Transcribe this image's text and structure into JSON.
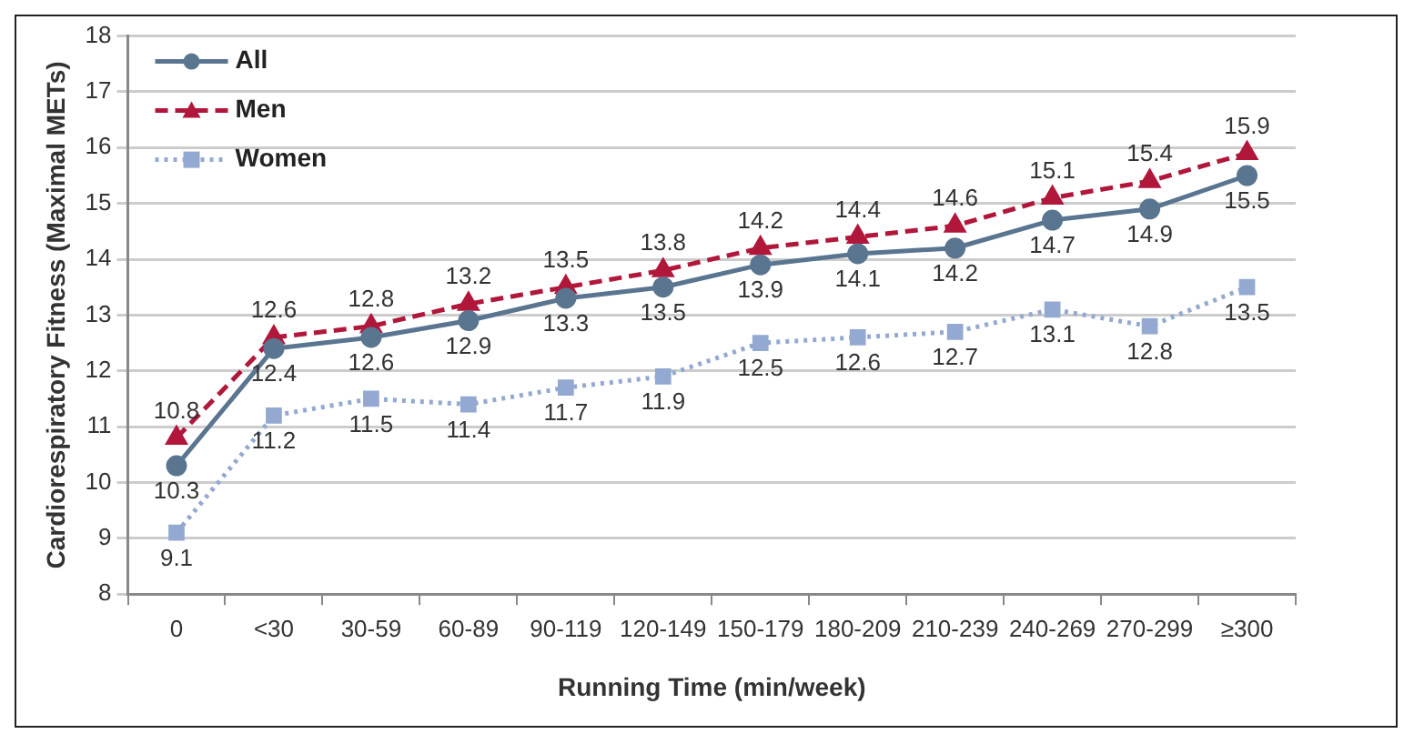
{
  "chart_data": {
    "type": "line",
    "xlabel": "Running Time (min/week)",
    "ylabel": "Cardiorespiratory Fitness (Maximal METs)",
    "categories": [
      "0",
      "<30",
      "30-59",
      "60-89",
      "90-119",
      "120-149",
      "150-179",
      "180-209",
      "210-239",
      "240-269",
      "270-299",
      "≥300"
    ],
    "series": [
      {
        "name": "All",
        "color": "#5a7590",
        "marker": "circle",
        "line_style": "solid",
        "values": [
          10.3,
          12.4,
          12.6,
          12.9,
          13.3,
          13.5,
          13.9,
          14.1,
          14.2,
          14.7,
          14.9,
          15.5
        ]
      },
      {
        "name": "Men",
        "color": "#b0173a",
        "marker": "triangle",
        "line_style": "dashed",
        "values": [
          10.8,
          12.6,
          12.8,
          13.2,
          13.5,
          13.8,
          14.2,
          14.4,
          14.6,
          15.1,
          15.4,
          15.9
        ]
      },
      {
        "name": "Women",
        "color": "#94a9d1",
        "marker": "square",
        "line_style": "dotted",
        "values": [
          9.1,
          11.2,
          11.5,
          11.4,
          11.7,
          11.9,
          12.5,
          12.6,
          12.7,
          13.1,
          12.8,
          13.5
        ]
      }
    ],
    "ylim": [
      8,
      18
    ],
    "yticks": [
      8,
      9,
      10,
      11,
      12,
      13,
      14,
      15,
      16,
      17,
      18
    ],
    "grid": "y",
    "legend": "top left",
    "data_labels": true
  }
}
